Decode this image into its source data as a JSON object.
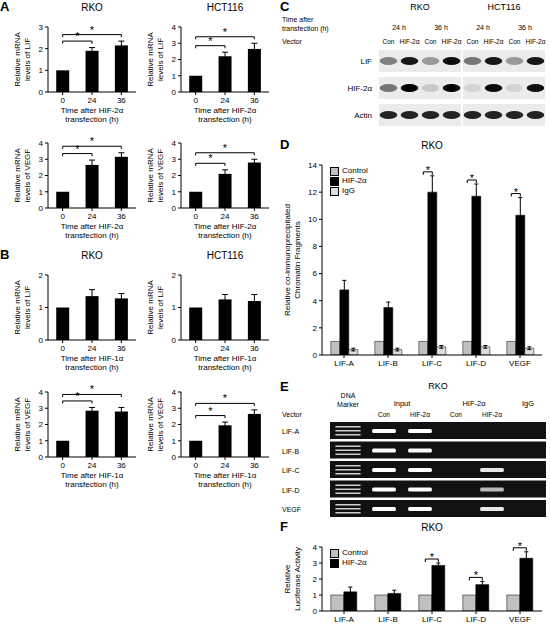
{
  "chart_data": [
    {
      "panel": "A",
      "title": "RKO",
      "type": "bar",
      "categories": [
        "0",
        "24",
        "36"
      ],
      "values": [
        1,
        1.9,
        2.15
      ],
      "errors": [
        0,
        0.15,
        0.2
      ],
      "color": "#000000",
      "ylim": [
        0,
        3
      ],
      "yticks": [
        0,
        1,
        2,
        3
      ],
      "y_label": "Relative mRNA levels of LIF",
      "x_label": "Time after HIF-2α transfection (h)",
      "significance": [
        {
          "from": "0",
          "to": "24",
          "label": "*"
        },
        {
          "from": "0",
          "to": "36",
          "label": "*"
        }
      ]
    },
    {
      "title": "HCT116",
      "type": "bar",
      "categories": [
        "0",
        "24",
        "36"
      ],
      "values": [
        1,
        2.2,
        2.65
      ],
      "errors": [
        0,
        0.25,
        0.35
      ],
      "color": "#000000",
      "ylim": [
        0,
        4
      ],
      "yticks": [
        0,
        1,
        2,
        3,
        4
      ],
      "y_label": "Relative mRNA levels of LIF",
      "x_label": "Time after HIF-2α transfection (h)",
      "significance": [
        {
          "from": "0",
          "to": "24",
          "label": "*"
        },
        {
          "from": "0",
          "to": "36",
          "label": "*"
        }
      ]
    },
    {
      "type": "bar",
      "categories": [
        "0",
        "24",
        "36"
      ],
      "values": [
        1,
        2.65,
        3.15
      ],
      "errors": [
        0,
        0.3,
        0.25
      ],
      "color": "#000000",
      "ylim": [
        0,
        4
      ],
      "yticks": [
        0,
        1,
        2,
        3,
        4
      ],
      "y_label": "Relative mRNA levels of VEGF",
      "x_label": "Time after HIF-2α transfection (h)",
      "significance": [
        {
          "from": "0",
          "to": "24",
          "label": "*"
        },
        {
          "from": "0",
          "to": "36",
          "label": "*"
        }
      ]
    },
    {
      "type": "bar",
      "categories": [
        "0",
        "24",
        "36"
      ],
      "values": [
        1,
        2.1,
        2.8
      ],
      "errors": [
        0,
        0.25,
        0.2
      ],
      "color": "#000000",
      "ylim": [
        0,
        4
      ],
      "yticks": [
        0,
        1,
        2,
        3,
        4
      ],
      "y_label": "Relative mRNA levels of VEGF",
      "x_label": "Time after HIF-2α transfection (h)",
      "significance": [
        {
          "from": "0",
          "to": "24",
          "label": "*"
        },
        {
          "from": "0",
          "to": "36",
          "label": "*"
        }
      ]
    },
    {
      "panel": "B",
      "title": "RKO",
      "type": "bar",
      "categories": [
        "0",
        "24",
        "36"
      ],
      "values": [
        1,
        1.35,
        1.28
      ],
      "errors": [
        0,
        0.2,
        0.15
      ],
      "color": "#000000",
      "ylim": [
        0,
        2
      ],
      "yticks": [
        0,
        1,
        2
      ],
      "y_label": "Relative mRNA levels of LIF",
      "x_label": "Time after HIF-1α transfection (h)"
    },
    {
      "title": "HCT116",
      "type": "bar",
      "categories": [
        "0",
        "24",
        "36"
      ],
      "values": [
        1,
        1.25,
        1.2
      ],
      "errors": [
        0,
        0.15,
        0.2
      ],
      "color": "#000000",
      "ylim": [
        0,
        2
      ],
      "yticks": [
        0,
        1,
        2
      ],
      "y_label": "Relative mRNA levels of LIF",
      "x_label": "Time after HIF-1α transfection (h)"
    },
    {
      "type": "bar",
      "categories": [
        "0",
        "24",
        "36"
      ],
      "values": [
        1,
        2.85,
        2.8
      ],
      "errors": [
        0,
        0.2,
        0.25
      ],
      "color": "#000000",
      "ylim": [
        0,
        4
      ],
      "yticks": [
        0,
        1,
        2,
        3,
        4
      ],
      "y_label": "Relative mRNA levels of VEGF",
      "x_label": "Time after HIF-1α transfection (h)",
      "significance": [
        {
          "from": "0",
          "to": "24",
          "label": "*"
        },
        {
          "from": "0",
          "to": "36",
          "label": "*"
        }
      ]
    },
    {
      "type": "bar",
      "categories": [
        "0",
        "24",
        "36"
      ],
      "values": [
        1,
        1.95,
        2.65
      ],
      "errors": [
        0,
        0.2,
        0.25
      ],
      "color": "#000000",
      "ylim": [
        0,
        4
      ],
      "yticks": [
        0,
        1,
        2,
        3,
        4
      ],
      "y_label": "Relative mRNA levels of VEGF",
      "x_label": "Time after HIF-1α transfection (h)",
      "significance": [
        {
          "from": "0",
          "to": "24",
          "label": "*"
        },
        {
          "from": "0",
          "to": "36",
          "label": "*"
        }
      ]
    },
    {
      "panel": "D",
      "title": "RKO",
      "type": "bar",
      "categories": [
        "LIF-A",
        "LIF-B",
        "LIF-C",
        "LIF-D",
        "VEGF"
      ],
      "series": [
        {
          "name": "Control",
          "color": "#c0c0c0",
          "values": [
            1,
            1,
            1,
            1,
            1
          ]
        },
        {
          "name": "HIF-2α",
          "color": "#000000",
          "values": [
            4.8,
            3.5,
            12,
            11.7,
            10.3
          ],
          "errors": [
            0.7,
            0.4,
            1.2,
            0.9,
            1.3
          ]
        },
        {
          "name": "IgG",
          "color": "#dedede",
          "values": [
            0.4,
            0.4,
            0.6,
            0.6,
            0.5
          ],
          "errors": [
            0.1,
            0.1,
            0.1,
            0.1,
            0.1
          ]
        }
      ],
      "ylim": [
        0,
        14
      ],
      "yticks": [
        0,
        2,
        4,
        6,
        8,
        10,
        12,
        14
      ],
      "y_label": "Relative co-immunoprecipitated Chromatin Fragments",
      "legend": "top-left",
      "significance": [
        {
          "category": "LIF-C",
          "label": "*"
        },
        {
          "category": "LIF-D",
          "label": "*"
        },
        {
          "category": "VEGF",
          "label": "*"
        }
      ]
    },
    {
      "panel": "F",
      "title": "RKO",
      "type": "bar",
      "categories": [
        "LIF-A",
        "LIF-B",
        "LIF-C",
        "LIF-D",
        "VEGF"
      ],
      "series": [
        {
          "name": "Control",
          "color": "#c0c0c0",
          "values": [
            1,
            1,
            1,
            1,
            1
          ]
        },
        {
          "name": "HIF-2α",
          "color": "#000000",
          "values": [
            1.2,
            1.1,
            2.85,
            1.65,
            3.3
          ],
          "errors": [
            0.3,
            0.2,
            0.15,
            0.2,
            0.4
          ]
        }
      ],
      "ylim": [
        0,
        4
      ],
      "yticks": [
        0,
        1,
        2,
        3,
        4
      ],
      "y_label": "Relative Luciferase Activity",
      "legend": "top-left",
      "significance": [
        {
          "category": "LIF-C",
          "label": "*"
        },
        {
          "category": "LIF-D",
          "label": "*"
        },
        {
          "category": "VEGF",
          "label": "*"
        }
      ]
    }
  ],
  "blots": [
    {
      "panel": "C",
      "groups": [
        {
          "label": "RKO",
          "times": [
            "24 h",
            "36 h"
          ]
        },
        {
          "label": "HCT116",
          "times": [
            "24 h",
            "36 h"
          ]
        }
      ],
      "time_label": "Time after transfection (h)",
      "lane_label": "Vector",
      "lanes": [
        "Con",
        "HIF-2α",
        "Con",
        "HIF-2α",
        "Con",
        "HIF-2α",
        "Con",
        "HIF-2α"
      ],
      "rows": [
        {
          "label": "LIF",
          "bands": [
            0.45,
            0.9,
            0.35,
            0.95,
            0.5,
            0.9,
            0.35,
            0.9
          ]
        },
        {
          "label": "HIF-2α",
          "bands": [
            0.5,
            1,
            0.15,
            1,
            0.1,
            0.95,
            0.1,
            0.95
          ]
        },
        {
          "label": "Actin",
          "bands": [
            0.85,
            0.85,
            0.85,
            0.85,
            0.85,
            0.85,
            0.85,
            0.85
          ]
        }
      ]
    },
    {
      "panel": "E",
      "title": "RKO",
      "marker_label": "DNA Marker",
      "lane_label": "Vector",
      "groups": [
        {
          "label": "Input",
          "lanes": [
            "Con",
            "HIF-2α"
          ]
        },
        {
          "label": "HIF-2α",
          "lanes": [
            "Con",
            "HIF-2α"
          ]
        },
        {
          "label": "IgG",
          "lanes": [
            null
          ]
        }
      ],
      "rows": [
        {
          "label": "LIF-A",
          "bands": [
            1,
            1,
            0,
            0,
            0
          ]
        },
        {
          "label": "LIF-B",
          "bands": [
            1,
            1,
            0,
            0,
            0
          ]
        },
        {
          "label": "LIF-C",
          "bands": [
            1,
            1,
            0,
            0.9,
            0
          ]
        },
        {
          "label": "LIF-D",
          "bands": [
            1,
            1,
            0,
            0.7,
            0
          ]
        },
        {
          "label": "VEGF",
          "bands": [
            1,
            1,
            0,
            0.9,
            0
          ]
        }
      ]
    }
  ]
}
